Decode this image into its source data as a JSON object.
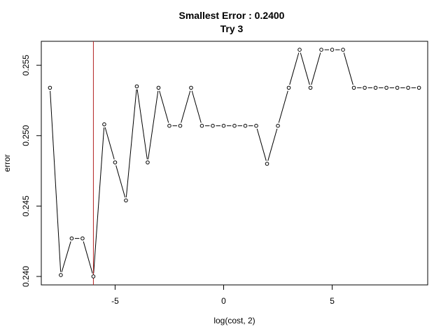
{
  "chart_data": {
    "type": "line",
    "title": "Smallest Error : 0.2400",
    "subtitle": "Try 3",
    "xlabel": "log(cost, 2)",
    "ylabel": "error",
    "xlim": [
      -8.4,
      9.4
    ],
    "ylim": [
      0.2394,
      0.2567
    ],
    "xticks": [
      -5,
      0,
      5
    ],
    "xtick_labels": [
      "-5",
      "0",
      "5"
    ],
    "yticks": [
      0.24,
      0.245,
      0.25,
      0.255
    ],
    "ytick_labels": [
      "0.240",
      "0.245",
      "0.250",
      "0.255"
    ],
    "grid": false,
    "legend": "none",
    "line_color": "#000000",
    "vline": {
      "x": -6,
      "color": "#b22222"
    },
    "series": [
      {
        "x": [
          -8,
          -7.5,
          -7,
          -6.5,
          -6,
          -5.5,
          -5,
          -4.5,
          -4,
          -3.5,
          -3,
          -2.5,
          -2,
          -1.5,
          -1,
          -0.5,
          0,
          0.5,
          1,
          1.5,
          2,
          2.5,
          3,
          3.5,
          4,
          4.5,
          5,
          5.5,
          6,
          6.5,
          7,
          7.5,
          8,
          8.5,
          9
        ],
        "y": [
          0.2534,
          0.2401,
          0.2427,
          0.2427,
          0.24,
          0.2508,
          0.2481,
          0.2454,
          0.2535,
          0.2481,
          0.2534,
          0.2507,
          0.2507,
          0.2534,
          0.2507,
          0.2507,
          0.2507,
          0.2507,
          0.2507,
          0.2507,
          0.248,
          0.2507,
          0.2534,
          0.2561,
          0.2534,
          0.2561,
          0.2561,
          0.2561,
          0.2534,
          0.2534,
          0.2534,
          0.2534,
          0.2534,
          0.2534,
          0.2534
        ]
      }
    ]
  }
}
